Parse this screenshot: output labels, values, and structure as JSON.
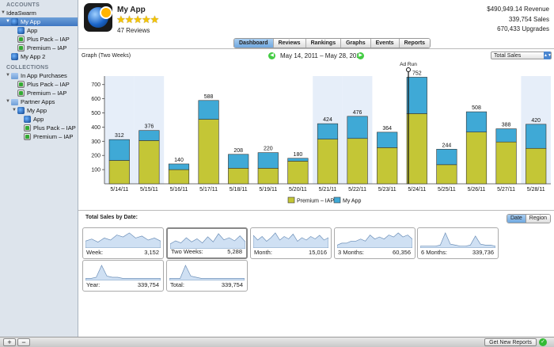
{
  "sidebar": {
    "accounts_header": "ACCOUNTS",
    "account_name": "IdeaSwarm",
    "selected_app": "My App",
    "app_children": [
      "App",
      "Plus Pack – IAP",
      "Premium – IAP"
    ],
    "my_app_2": "My App 2",
    "collections_header": "COLLECTIONS",
    "collection_iap": "In App Purchases",
    "iap_children": [
      "Plus Pack – IAP",
      "Premium – IAP"
    ],
    "collection_partner": "Partner Apps",
    "partner_app": "My App",
    "partner_children": [
      "App",
      "Plus Pack – IAP",
      "Premium – IAP"
    ]
  },
  "header": {
    "app_name": "My App",
    "stars": "★★★★★",
    "reviews": "47 Reviews",
    "revenue": "$490,949.14 Revenue",
    "sales": "339,754 Sales",
    "upgrades": "670,433 Upgrades"
  },
  "tabs": [
    "Dashboard",
    "Reviews",
    "Rankings",
    "Graphs",
    "Events",
    "Reports"
  ],
  "graph": {
    "label": "Graph (Two Weeks)",
    "date_range": "May 14, 2011 – May 28, 2011",
    "select_value": "Total Sales"
  },
  "chart_data": {
    "type": "bar",
    "stacked": true,
    "categories": [
      "5/14/11",
      "5/15/11",
      "5/16/11",
      "5/17/11",
      "5/18/11",
      "5/19/11",
      "5/20/11",
      "5/21/11",
      "5/22/11",
      "5/23/11",
      "5/24/11",
      "5/25/11",
      "5/26/11",
      "5/27/11",
      "5/28/11"
    ],
    "series": [
      {
        "name": "Premium – IAP",
        "color": "#c4c636",
        "values": [
          165,
          305,
          100,
          455,
          110,
          110,
          160,
          315,
          320,
          255,
          495,
          135,
          365,
          295,
          250
        ]
      },
      {
        "name": "My App",
        "color": "#3fa9d6",
        "values": [
          147,
          71,
          40,
          133,
          98,
          110,
          20,
          109,
          156,
          109,
          257,
          109,
          143,
          93,
          170
        ]
      }
    ],
    "totals": [
      312,
      376,
      140,
      588,
      208,
      220,
      180,
      424,
      476,
      364,
      752,
      244,
      508,
      388,
      420
    ],
    "yticks": [
      100,
      200,
      300,
      400,
      500,
      600,
      700
    ],
    "ylim": [
      0,
      760
    ],
    "weekend_shading": [
      0,
      1,
      7,
      8,
      14
    ],
    "annotation": {
      "label": "Ad Run",
      "index": 10
    },
    "legend_position": "bottom-center"
  },
  "sales_by_date": {
    "title": "Total Sales by Date:",
    "toggle": [
      "Date",
      "Region"
    ],
    "cards": [
      {
        "label": "Week:",
        "value": "3,152"
      },
      {
        "label": "Two Weeks:",
        "value": "5,288"
      },
      {
        "label": "Month:",
        "value": "15,016"
      },
      {
        "label": "3 Months:",
        "value": "60,356"
      },
      {
        "label": "6 Months:",
        "value": "339,736"
      },
      {
        "label": "Year:",
        "value": "339,754"
      },
      {
        "label": "Total:",
        "value": "339,754"
      }
    ]
  },
  "bottom": {
    "add": "+",
    "remove": "−",
    "get_reports": "Get New Reports"
  }
}
